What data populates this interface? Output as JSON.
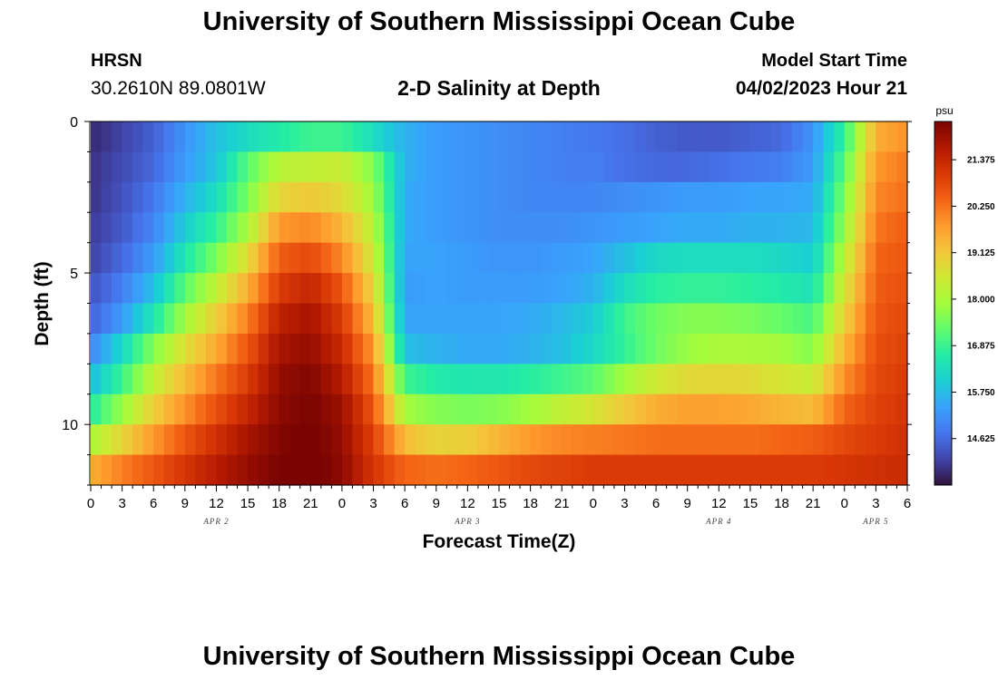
{
  "page": {
    "title": "University of Southern Mississippi Ocean Cube",
    "footer_title": "University of Southern Mississippi Ocean Cube",
    "station": "HRSN",
    "coordinates": "30.2610N  89.0801W",
    "subtitle": "2-D Salinity at Depth",
    "model_start_label": "Model Start Time",
    "model_start_value": "04/02/2023 Hour 21"
  },
  "colors": {
    "colormap": [
      "#30123b",
      "#4145ab",
      "#4675ed",
      "#39a2fc",
      "#1bcfd4",
      "#24eca6",
      "#61fc6c",
      "#a4fc3b",
      "#d1e834",
      "#f3c63a",
      "#fe9b2d",
      "#f36315",
      "#d93806",
      "#b11901",
      "#7a0402"
    ]
  },
  "chart_data": {
    "type": "heatmap",
    "xlabel": "Forecast Time(Z)",
    "ylabel": "Depth (ft)",
    "colorbar_unit": "psu",
    "colorbar_ticks": [
      14.625,
      15.75,
      16.875,
      18.0,
      19.125,
      20.25,
      21.375
    ],
    "colorbar_tick_labels": [
      "14.625",
      "15.750",
      "16.875",
      "18.000",
      "19.125",
      "20.250",
      "21.375"
    ],
    "zlim": [
      13.5,
      22.3
    ],
    "ylim": [
      0,
      12
    ],
    "y_ticks": [
      0,
      5,
      10
    ],
    "y_tick_labels": [
      "0",
      "5",
      "10"
    ],
    "xlim": [
      0,
      78
    ],
    "x_ticks": [
      0,
      3,
      6,
      9,
      12,
      15,
      18,
      21,
      24,
      27,
      30,
      33,
      36,
      39,
      42,
      45,
      48,
      51,
      54,
      57,
      60,
      63,
      66,
      69,
      72,
      75,
      78
    ],
    "x_tick_labels": [
      "0",
      "3",
      "6",
      "9",
      "12",
      "15",
      "18",
      "21",
      "0",
      "3",
      "6",
      "9",
      "12",
      "15",
      "18",
      "21",
      "0",
      "3",
      "6",
      "9",
      "12",
      "15",
      "18",
      "21",
      "0",
      "3",
      "6"
    ],
    "date_labels": [
      {
        "hour": 12,
        "text": "APR 2"
      },
      {
        "hour": 36,
        "text": "APR 3"
      },
      {
        "hour": 60,
        "text": "APR 4"
      },
      {
        "hour": 75,
        "text": "APR 5"
      }
    ],
    "depth_levels": [
      0.5,
      1.5,
      2.5,
      3.5,
      4.5,
      5.5,
      6.5,
      7.5,
      8.5,
      9.5,
      10.5,
      11.5
    ],
    "time_hours": [
      0,
      3,
      6,
      9,
      12,
      15,
      18,
      21,
      24,
      27,
      30,
      33,
      36,
      39,
      42,
      45,
      48,
      51,
      54,
      57,
      60,
      63,
      66,
      69,
      72,
      75,
      78
    ],
    "salinity_psu": [
      [
        13.8,
        14.1,
        14.5,
        15.2,
        15.8,
        16.3,
        16.6,
        16.9,
        16.9,
        16.3,
        15.6,
        15.3,
        15.2,
        15.1,
        15.0,
        14.9,
        14.8,
        14.7,
        14.5,
        14.4,
        14.4,
        14.5,
        14.6,
        15.2,
        16.8,
        19.5,
        19.9
      ],
      [
        13.9,
        14.2,
        14.6,
        15.3,
        15.9,
        17.2,
        18.2,
        18.3,
        18.4,
        17.6,
        15.6,
        15.3,
        15.2,
        15.1,
        15.0,
        14.9,
        14.9,
        14.7,
        14.6,
        14.6,
        14.7,
        14.8,
        14.9,
        15.3,
        17.2,
        19.8,
        20.2
      ],
      [
        13.9,
        14.3,
        14.8,
        15.6,
        16.3,
        17.5,
        18.9,
        19.1,
        18.8,
        17.9,
        15.5,
        15.3,
        15.2,
        15.1,
        15.0,
        15.0,
        15.0,
        15.1,
        15.2,
        15.3,
        15.3,
        15.4,
        15.4,
        15.5,
        17.5,
        20.0,
        20.3
      ],
      [
        14.0,
        14.4,
        15.0,
        16.0,
        16.8,
        18.0,
        19.8,
        20.0,
        19.4,
        18.2,
        15.5,
        15.3,
        15.2,
        15.1,
        15.1,
        15.1,
        15.2,
        15.3,
        15.4,
        15.5,
        15.5,
        15.6,
        15.6,
        15.7,
        17.8,
        20.2,
        20.5
      ],
      [
        14.1,
        14.6,
        15.3,
        16.5,
        17.5,
        18.8,
        20.5,
        20.8,
        20.0,
        18.5,
        15.4,
        15.4,
        15.3,
        15.2,
        15.2,
        15.3,
        15.4,
        15.8,
        16.2,
        16.3,
        16.3,
        16.3,
        16.2,
        16.0,
        18.2,
        20.4,
        20.6
      ],
      [
        14.3,
        14.9,
        15.8,
        17.2,
        18.3,
        19.5,
        21.0,
        21.4,
        20.6,
        18.9,
        15.3,
        15.4,
        15.3,
        15.3,
        15.3,
        15.4,
        15.6,
        16.3,
        16.7,
        16.8,
        16.8,
        16.7,
        16.6,
        16.4,
        18.6,
        20.5,
        20.7
      ],
      [
        14.5,
        15.3,
        16.5,
        17.9,
        19.0,
        20.1,
        21.5,
        21.8,
        21.0,
        19.3,
        15.4,
        15.4,
        15.4,
        15.4,
        15.5,
        15.7,
        16.0,
        16.9,
        17.4,
        17.6,
        17.6,
        17.5,
        17.3,
        17.0,
        19.0,
        20.6,
        20.8
      ],
      [
        15.0,
        16.2,
        17.6,
        18.7,
        19.6,
        20.6,
        21.8,
        22.0,
        21.3,
        19.8,
        15.8,
        15.6,
        15.5,
        15.5,
        15.6,
        15.8,
        16.2,
        16.8,
        17.4,
        17.8,
        18.0,
        18.0,
        17.9,
        17.6,
        19.4,
        20.7,
        20.9
      ],
      [
        15.7,
        16.9,
        18.3,
        19.3,
        20.2,
        21.0,
        22.0,
        22.2,
        21.6,
        20.2,
        16.9,
        16.6,
        16.5,
        16.5,
        16.7,
        16.9,
        17.2,
        17.9,
        18.5,
        18.8,
        18.9,
        18.8,
        18.6,
        18.4,
        19.9,
        20.8,
        21.0
      ],
      [
        16.6,
        17.8,
        19.0,
        19.9,
        20.7,
        21.4,
        22.1,
        22.3,
        21.9,
        20.6,
        17.9,
        17.6,
        17.5,
        17.6,
        17.9,
        18.3,
        18.6,
        19.1,
        19.5,
        19.7,
        19.7,
        19.6,
        19.4,
        19.3,
        20.4,
        20.9,
        21.1
      ],
      [
        18.0,
        18.9,
        19.8,
        20.6,
        21.2,
        21.8,
        22.2,
        22.4,
        22.0,
        20.9,
        19.3,
        18.9,
        19.0,
        19.4,
        19.8,
        20.0,
        20.1,
        20.2,
        20.3,
        20.3,
        20.3,
        20.3,
        20.4,
        20.5,
        20.8,
        21.0,
        21.2
      ],
      [
        19.5,
        20.1,
        20.6,
        21.1,
        21.6,
        22.0,
        22.3,
        22.4,
        22.1,
        21.1,
        20.4,
        20.3,
        20.4,
        20.6,
        20.8,
        20.9,
        21.0,
        21.0,
        21.0,
        21.0,
        21.0,
        21.0,
        21.0,
        21.0,
        21.1,
        21.2,
        21.3
      ]
    ]
  }
}
